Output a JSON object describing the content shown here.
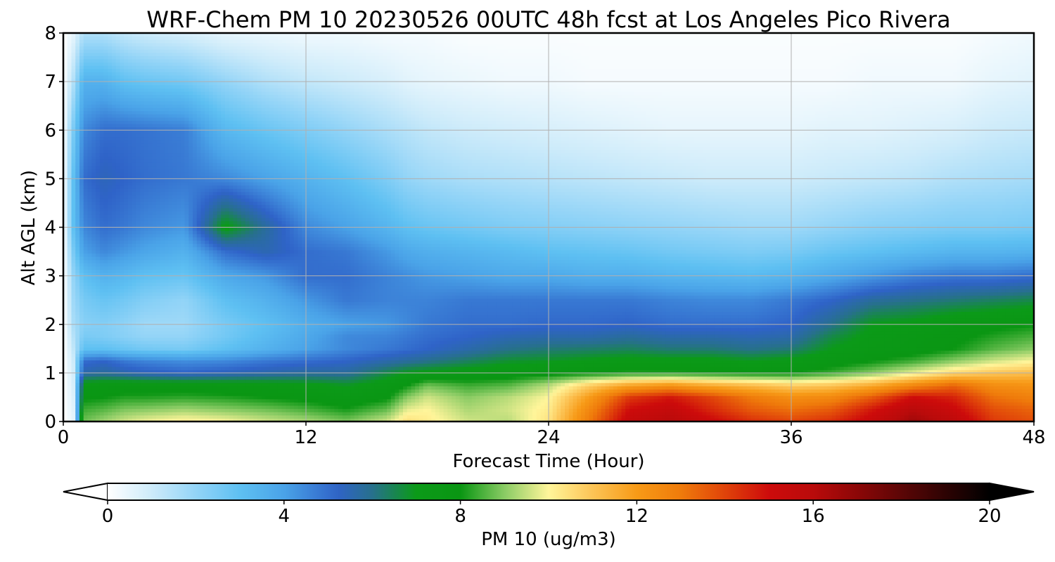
{
  "chart_data": {
    "type": "heatmap",
    "title": "WRF-Chem PM 10  20230526 00UTC 48h fcst at Los Angeles Pico Rivera",
    "xlabel": "Forecast Time (Hour)",
    "ylabel": "Alt AGL (km)",
    "xlim": [
      0,
      48
    ],
    "ylim": [
      0,
      8
    ],
    "x_ticks": [
      0,
      12,
      24,
      36,
      48
    ],
    "y_ticks": [
      0,
      1,
      2,
      3,
      4,
      5,
      6,
      7,
      8
    ],
    "grid": true,
    "x": [
      0,
      0.5,
      1,
      2,
      3,
      4,
      6,
      8,
      10,
      12,
      14,
      16,
      17,
      18,
      20,
      22,
      24,
      26,
      28,
      30,
      32,
      34,
      36,
      38,
      40,
      42,
      44,
      46,
      48
    ],
    "y": [
      0,
      0.25,
      0.5,
      0.75,
      1,
      1.25,
      1.5,
      1.75,
      2,
      2.5,
      3,
      3.5,
      4,
      5,
      6,
      7,
      8
    ],
    "z_columns": [
      [
        0,
        0,
        0,
        0,
        0,
        0,
        0,
        0,
        0,
        0,
        0,
        0,
        0,
        0,
        0,
        0,
        0
      ],
      [
        0.5,
        0.6,
        0.7,
        0.8,
        0.9,
        1.0,
        1.2,
        1.4,
        1.6,
        1.8,
        2.0,
        2.5,
        3.0,
        3.0,
        2.5,
        1.5,
        0.5
      ],
      [
        8.8,
        8.4,
        7.9,
        7.4,
        5.6,
        5.0,
        3.0,
        2.5,
        2.2,
        2.5,
        3.0,
        4.0,
        4.5,
        5.0,
        4.5,
        3.5,
        1.5
      ],
      [
        9.2,
        8.6,
        8.0,
        7.5,
        5.8,
        5.2,
        3.0,
        2.4,
        2.3,
        2.8,
        3.5,
        4.5,
        5.0,
        5.4,
        5.0,
        3.5,
        1.5
      ],
      [
        9.6,
        8.9,
        8.2,
        7.6,
        5.6,
        4.8,
        2.8,
        2.2,
        2.1,
        2.6,
        3.3,
        4.2,
        4.8,
        5.2,
        5.0,
        3.0,
        1.2
      ],
      [
        9.9,
        9.0,
        8.2,
        7.6,
        5.4,
        4.6,
        2.6,
        2.0,
        1.8,
        2.3,
        3.0,
        3.9,
        4.5,
        5.0,
        4.9,
        2.8,
        1.0
      ],
      [
        10.2,
        9.2,
        8.3,
        7.6,
        5.2,
        4.4,
        2.5,
        2.0,
        1.8,
        2.0,
        2.8,
        3.5,
        4.2,
        4.8,
        4.7,
        2.6,
        0.8
      ],
      [
        10.0,
        9.0,
        8.2,
        7.5,
        5.4,
        4.5,
        3.0,
        2.6,
        2.5,
        3.0,
        3.8,
        5.0,
        7.2,
        4.5,
        3.3,
        2.0,
        0.5
      ],
      [
        9.6,
        8.8,
        8.0,
        7.4,
        5.6,
        4.8,
        3.5,
        3.2,
        3.0,
        3.5,
        4.2,
        5.5,
        5.8,
        4.0,
        2.8,
        1.5,
        0.4
      ],
      [
        9.3,
        8.5,
        7.8,
        7.2,
        5.8,
        5.0,
        4.0,
        3.8,
        3.6,
        4.2,
        5.0,
        5.0,
        4.5,
        3.5,
        2.4,
        1.2,
        0.3
      ],
      [
        8.9,
        8.1,
        7.5,
        6.9,
        5.8,
        5.2,
        4.5,
        4.5,
        4.0,
        4.8,
        5.0,
        4.8,
        4.0,
        3.0,
        2.0,
        1.0,
        0.3
      ],
      [
        9.6,
        8.7,
        7.9,
        7.4,
        6.6,
        5.6,
        4.8,
        4.6,
        4.2,
        4.6,
        4.6,
        4.2,
        3.4,
        2.4,
        1.6,
        0.8,
        0.2
      ],
      [
        10.5,
        9.8,
        9.0,
        8.0,
        7.0,
        5.8,
        5.0,
        4.8,
        4.5,
        4.6,
        4.4,
        3.8,
        3.0,
        2.0,
        1.4,
        0.6,
        0.2
      ],
      [
        10.2,
        10.0,
        9.6,
        8.8,
        7.2,
        6.0,
        5.2,
        5.0,
        4.8,
        4.6,
        4.2,
        3.6,
        2.8,
        1.8,
        1.2,
        0.5,
        0.2
      ],
      [
        9.6,
        9.3,
        9.0,
        8.4,
        7.4,
        6.4,
        5.6,
        5.2,
        5.0,
        4.8,
        4.0,
        3.4,
        2.6,
        1.6,
        1.0,
        0.4,
        0.1
      ],
      [
        9.4,
        9.6,
        9.4,
        8.6,
        7.6,
        6.8,
        6.0,
        5.5,
        5.0,
        4.8,
        3.8,
        3.2,
        2.4,
        1.5,
        0.9,
        0.3,
        0.1
      ],
      [
        10.4,
        10.2,
        10.0,
        9.4,
        7.8,
        6.9,
        6.2,
        5.6,
        5.1,
        4.8,
        3.8,
        3.0,
        2.3,
        1.4,
        0.8,
        0.3,
        0.1
      ],
      [
        13.0,
        12.6,
        12.0,
        10.8,
        8.0,
        7.1,
        6.3,
        5.6,
        5.1,
        4.8,
        3.6,
        2.9,
        2.2,
        1.3,
        0.7,
        0.2,
        0.1
      ],
      [
        15.5,
        15.0,
        14.2,
        11.8,
        8.2,
        7.3,
        6.4,
        5.8,
        5.2,
        4.8,
        3.6,
        2.8,
        2.1,
        1.2,
        0.6,
        0.2,
        0.1
      ],
      [
        16.0,
        15.5,
        14.8,
        12.2,
        8.2,
        7.2,
        6.2,
        5.6,
        5.0,
        4.6,
        3.4,
        2.6,
        2.0,
        1.1,
        0.5,
        0.2,
        0.1
      ],
      [
        15.2,
        14.5,
        14.0,
        11.6,
        8.1,
        7.2,
        6.2,
        5.6,
        5.0,
        4.5,
        3.3,
        2.5,
        1.9,
        1.0,
        0.5,
        0.2,
        0.1
      ],
      [
        14.4,
        13.6,
        13.0,
        11.2,
        8.0,
        7.0,
        6.0,
        5.5,
        5.0,
        4.5,
        3.2,
        2.4,
        1.8,
        1.0,
        0.5,
        0.2,
        0.1
      ],
      [
        14.0,
        13.2,
        12.4,
        10.8,
        8.0,
        7.2,
        6.2,
        5.6,
        5.2,
        4.8,
        3.4,
        2.5,
        1.8,
        1.0,
        0.5,
        0.2,
        0.1
      ],
      [
        14.4,
        13.6,
        12.6,
        11.0,
        8.4,
        7.6,
        7.0,
        6.6,
        6.0,
        5.2,
        3.8,
        2.8,
        2.0,
        1.1,
        0.6,
        0.2,
        0.1
      ],
      [
        15.4,
        14.8,
        13.6,
        11.6,
        9.0,
        8.0,
        7.4,
        7.2,
        7.0,
        5.8,
        4.2,
        3.0,
        2.2,
        1.2,
        0.6,
        0.3,
        0.1
      ],
      [
        16.6,
        16.0,
        15.0,
        12.6,
        9.8,
        8.4,
        7.6,
        7.5,
        7.2,
        6.0,
        4.6,
        3.2,
        2.3,
        1.3,
        0.7,
        0.3,
        0.1
      ],
      [
        15.8,
        15.2,
        14.6,
        13.4,
        10.6,
        9.0,
        8.0,
        7.8,
        7.6,
        6.2,
        4.8,
        3.4,
        2.4,
        1.5,
        0.8,
        0.3,
        0.1
      ],
      [
        14.2,
        13.8,
        13.2,
        12.4,
        11.0,
        9.6,
        8.6,
        8.2,
        7.8,
        6.4,
        4.8,
        3.4,
        2.4,
        1.6,
        1.0,
        0.5,
        0.2
      ],
      [
        13.8,
        13.4,
        12.8,
        12.2,
        11.2,
        10.0,
        9.0,
        8.5,
        8.0,
        6.6,
        5.0,
        3.5,
        2.5,
        1.7,
        1.1,
        0.6,
        0.3
      ]
    ],
    "colorbar": {
      "label": "PM 10  (ug/m3)",
      "min": 0,
      "max": 20,
      "ticks": [
        0,
        4,
        8,
        12,
        16,
        20
      ],
      "extend": "both",
      "color_stops": [
        [
          0,
          "#ffffff"
        ],
        [
          1,
          "#cdebfa"
        ],
        [
          2,
          "#93d4f7"
        ],
        [
          3,
          "#5ec0f2"
        ],
        [
          4,
          "#4aa3e8"
        ],
        [
          5.2,
          "#2f63c8"
        ],
        [
          6,
          "#27708c"
        ],
        [
          7,
          "#0b9a18"
        ],
        [
          8,
          "#0a9613"
        ],
        [
          9,
          "#8acb64"
        ],
        [
          10,
          "#fff59a"
        ],
        [
          11,
          "#fcc456"
        ],
        [
          12,
          "#f79a17"
        ],
        [
          13,
          "#ef7b0b"
        ],
        [
          14,
          "#e0430a"
        ],
        [
          15,
          "#cd0b0b"
        ],
        [
          16,
          "#b90b0b"
        ],
        [
          17,
          "#8c0707"
        ],
        [
          18,
          "#5c0606"
        ],
        [
          19,
          "#2d0303"
        ],
        [
          20,
          "#000000"
        ]
      ]
    }
  }
}
